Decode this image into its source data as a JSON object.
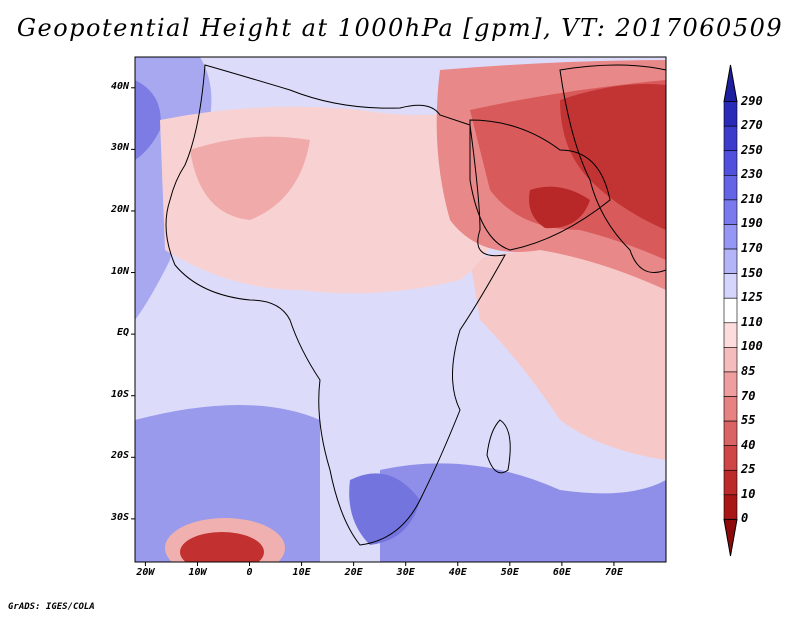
{
  "title": "Geopotential Height at 1000hPa [gpm], VT: 2017060509",
  "credit": "GrADS: IGES/COLA",
  "map": {
    "lat_labels": [
      "40N",
      "30N",
      "20N",
      "10N",
      "EQ",
      "10S",
      "20S",
      "30S"
    ],
    "lon_labels": [
      "20W",
      "10W",
      "0",
      "10E",
      "20E",
      "30E",
      "40E",
      "50E",
      "60E",
      "70E"
    ],
    "lat_values": [
      40,
      30,
      20,
      10,
      0,
      -10,
      -20,
      -30
    ],
    "lon_values": [
      -20,
      -10,
      0,
      10,
      20,
      30,
      40,
      50,
      60,
      70
    ],
    "extent": {
      "lon_min": -22,
      "lon_max": 80,
      "lat_min": -37,
      "lat_max": 45
    },
    "variable": "Geopotential Height",
    "level": "1000hPa",
    "units": "gpm",
    "valid_time": "2017060509"
  },
  "colorbar": {
    "labels": [
      "290",
      "270",
      "250",
      "230",
      "210",
      "190",
      "170",
      "150",
      "125",
      "110",
      "100",
      "85",
      "70",
      "55",
      "40",
      "25",
      "10",
      "0"
    ],
    "colors": [
      "#1e1ea0",
      "#2a2ab8",
      "#3c3ccc",
      "#5050dc",
      "#6464e6",
      "#7a7aee",
      "#9696f4",
      "#b4b4f8",
      "#d4d4fc",
      "#ffffff",
      "#fcdcdc",
      "#f4bcbc",
      "#ee9e9e",
      "#e68282",
      "#da6464",
      "#ce4646",
      "#bc2a2a",
      "#a81616",
      "#8c0a0a"
    ]
  }
}
